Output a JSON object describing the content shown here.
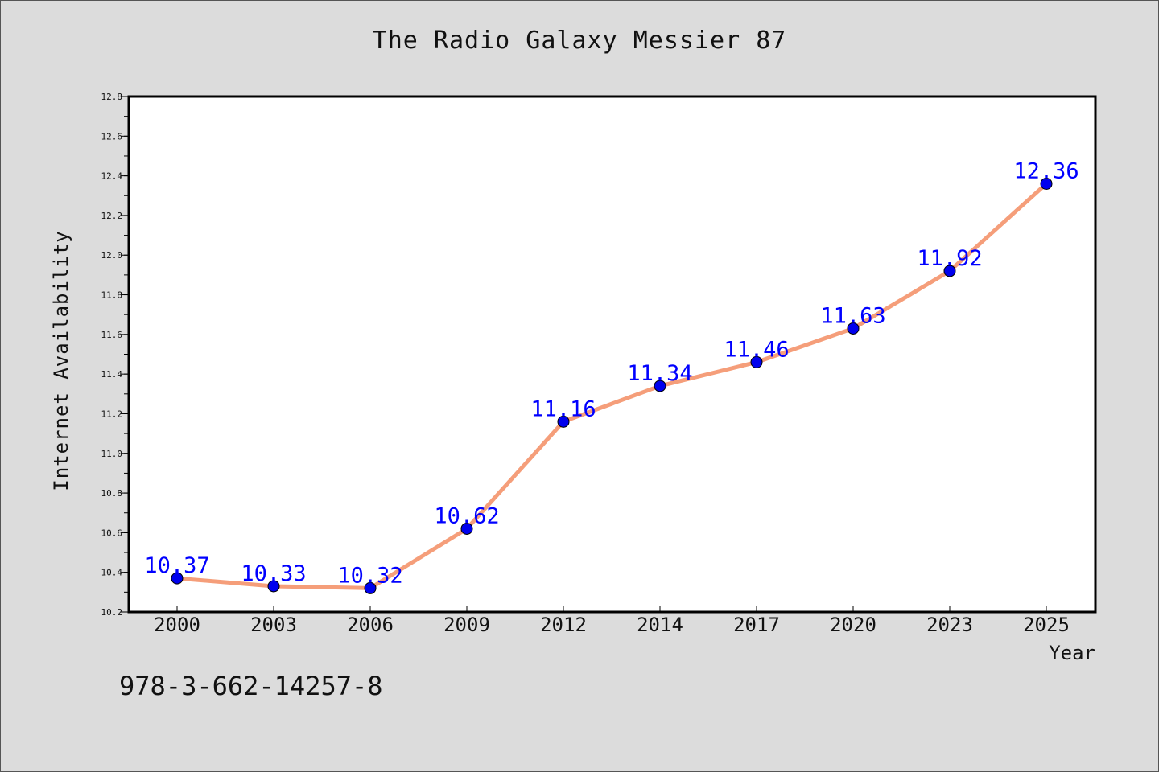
{
  "title": "The Radio Galaxy Messier 87",
  "footer_text": "978-3-662-14257-8",
  "colors": {
    "background": "#dcdcdc",
    "plot_area": "#ffffff",
    "line": "#f59e7a",
    "marker": "#0000ee",
    "label": "#0000ff"
  },
  "chart_data": {
    "type": "line",
    "title": "The Radio Galaxy Messier 87",
    "xlabel": "Year",
    "ylabel": "Internet Availability",
    "categories": [
      "2000",
      "2003",
      "2006",
      "2009",
      "2012",
      "2014",
      "2017",
      "2020",
      "2023",
      "2025"
    ],
    "series": [
      {
        "values": [
          10.37,
          10.33,
          10.32,
          10.62,
          11.16,
          11.34,
          11.46,
          11.63,
          11.92,
          12.36
        ],
        "value_labels": [
          "10.37",
          "10.33",
          "10.32",
          "10.62",
          "11.16",
          "11.34",
          "11.46",
          "11.63",
          "11.92",
          "12.36"
        ]
      }
    ],
    "ylim": [
      10.2,
      12.8
    ],
    "yticks": [
      "10.2",
      "10.4",
      "10.6",
      "10.8",
      "11.0",
      "11.2",
      "11.4",
      "11.6",
      "11.8",
      "12.0",
      "12.2",
      "12.4",
      "12.6",
      "12.8"
    ],
    "grid": false,
    "legend": "none",
    "marker": "circle",
    "data_labels": true
  }
}
